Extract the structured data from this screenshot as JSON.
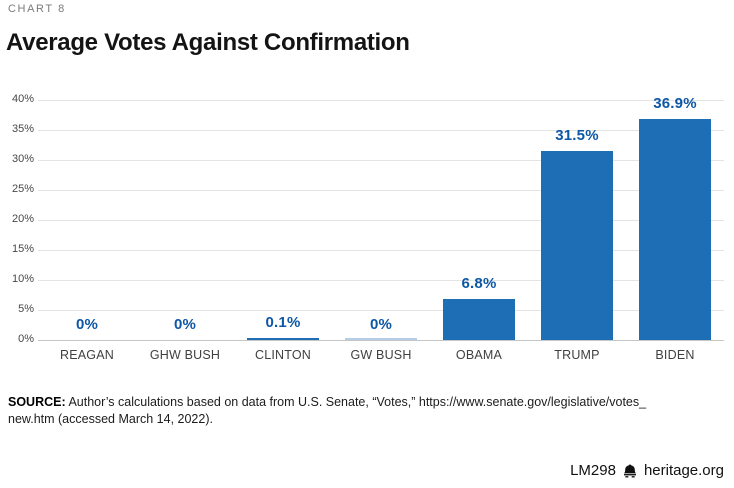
{
  "eyebrow": "CHART 8",
  "title": "Average Votes Against Confirmation",
  "chart_data": {
    "type": "bar",
    "title": "Average Votes Against Confirmation",
    "categories": [
      "REAGAN",
      "GHW BUSH",
      "CLINTON",
      "GW BUSH",
      "OBAMA",
      "TRUMP",
      "BIDEN"
    ],
    "values": [
      0,
      0,
      0.1,
      0,
      6.8,
      31.5,
      36.9
    ],
    "bars": [
      {
        "category": "REAGAN",
        "value": 0,
        "label": "0%"
      },
      {
        "category": "GHW BUSH",
        "value": 0,
        "label": "0%"
      },
      {
        "category": "CLINTON",
        "value": 0.1,
        "label": "0.1%"
      },
      {
        "category": "GW BUSH",
        "value": 0,
        "label": "0%",
        "trace": true
      },
      {
        "category": "OBAMA",
        "value": 6.8,
        "label": "6.8%"
      },
      {
        "category": "TRUMP",
        "value": 31.5,
        "label": "31.5%"
      },
      {
        "category": "BIDEN",
        "value": 36.9,
        "label": "36.9%"
      }
    ],
    "xlabel": "",
    "ylabel": "",
    "ylim": [
      0,
      40
    ],
    "ytick_step": 5,
    "ytick_labels": [
      "0%",
      "5%",
      "10%",
      "15%",
      "20%",
      "25%",
      "30%",
      "35%",
      "40%"
    ],
    "grid": true,
    "legend": "none",
    "bar_color": "#1e6eb6",
    "trace_color": "#b6cde7",
    "value_label_color": "#0d57a6"
  },
  "source": {
    "label": "SOURCE:",
    "line1": "Author’s calculations based on data from U.S. Senate, “Votes,” https://www.senate.gov/legislative/votes_",
    "line2": "new.htm (accessed March 14, 2022)."
  },
  "footer": {
    "report_id": "LM298",
    "icon": "liberty-bell-icon",
    "site": "heritage.org"
  }
}
